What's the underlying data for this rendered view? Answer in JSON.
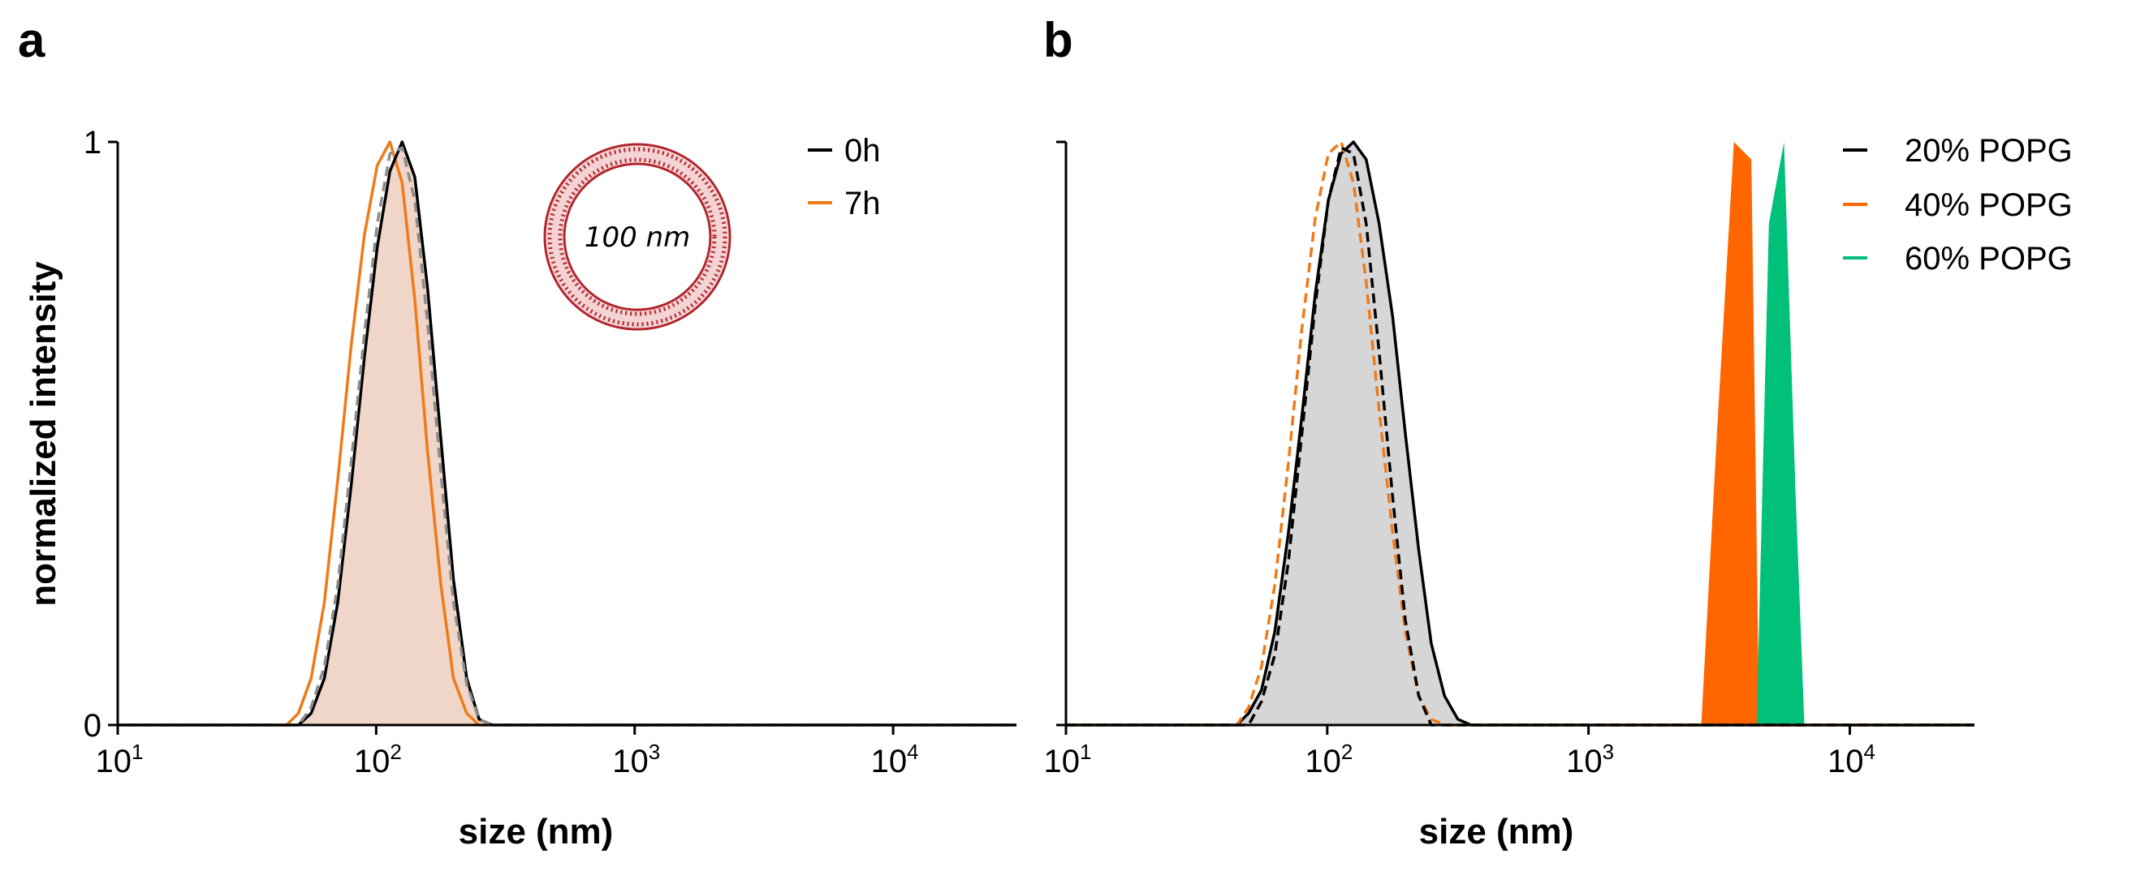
{
  "chart_data": [
    {
      "panel": "a",
      "type": "area",
      "xscale": "log",
      "xlim": [
        10,
        30000
      ],
      "ylim": [
        0,
        1
      ],
      "xlabel": "size (nm)",
      "ylabel": "normalized intensity",
      "ytick_labels": [
        "0",
        "1"
      ],
      "xtick_labels": [
        {
          "base": "10",
          "exp": "1",
          "value": 10
        },
        {
          "base": "10",
          "exp": "2",
          "value": 100
        },
        {
          "base": "10",
          "exp": "3",
          "value": 1000
        },
        {
          "base": "10",
          "exp": "4",
          "value": 10000
        }
      ],
      "legend": [
        "0h",
        "7h"
      ],
      "inset_label": "100 nm",
      "series": [
        {
          "name": "0h",
          "color": "#000000",
          "style": "solid",
          "fill": "#efd6c9",
          "x": [
            10,
            50,
            56,
            63,
            71,
            80,
            90,
            101,
            113,
            126,
            141,
            158,
            178,
            199,
            224,
            250,
            281,
            316,
            30000
          ],
          "y": [
            0,
            0,
            0.02,
            0.08,
            0.21,
            0.41,
            0.63,
            0.82,
            0.95,
            1.0,
            0.94,
            0.75,
            0.49,
            0.25,
            0.08,
            0.01,
            0,
            0,
            0
          ]
        },
        {
          "name": "7h",
          "color": "#f07a18",
          "style": "solid",
          "x": [
            10,
            45,
            50,
            56,
            63,
            71,
            80,
            90,
            101,
            113,
            126,
            141,
            158,
            178,
            199,
            224,
            250,
            281,
            316,
            30000
          ],
          "y": [
            0,
            0,
            0.02,
            0.08,
            0.21,
            0.42,
            0.65,
            0.84,
            0.96,
            1.0,
            0.93,
            0.73,
            0.47,
            0.24,
            0.08,
            0.02,
            0,
            0,
            0,
            0
          ]
        },
        {
          "name": "fit",
          "color": "#8c8c8c",
          "style": "dashed",
          "x": [
            10,
            50,
            56,
            63,
            71,
            80,
            90,
            101,
            113,
            126,
            141,
            158,
            178,
            199,
            224,
            250,
            281,
            30000
          ],
          "y": [
            0,
            0,
            0.03,
            0.1,
            0.24,
            0.45,
            0.67,
            0.86,
            0.98,
            0.99,
            0.9,
            0.69,
            0.43,
            0.21,
            0.07,
            0.01,
            0,
            0
          ]
        }
      ]
    },
    {
      "panel": "b",
      "type": "area",
      "xscale": "log",
      "xlim": [
        10,
        30000
      ],
      "ylim": [
        0,
        1
      ],
      "xlabel": "size (nm)",
      "ylabel": "",
      "ytick_labels": [],
      "xtick_labels": [
        {
          "base": "10",
          "exp": "1",
          "value": 10
        },
        {
          "base": "10",
          "exp": "2",
          "value": 100
        },
        {
          "base": "10",
          "exp": "3",
          "value": 1000
        },
        {
          "base": "10",
          "exp": "4",
          "value": 10000
        }
      ],
      "legend": [
        "20% POPG",
        "40% POPG",
        "60% POPG"
      ],
      "series": [
        {
          "name": "20% POPG",
          "color": "#000000",
          "style": "solid",
          "fill": "#d6d6d6",
          "x": [
            10,
            45,
            50,
            56,
            63,
            71,
            80,
            90,
            101,
            113,
            126,
            141,
            158,
            178,
            199,
            224,
            250,
            281,
            316,
            355,
            30000
          ],
          "y": [
            0,
            0,
            0.02,
            0.06,
            0.16,
            0.33,
            0.53,
            0.74,
            0.9,
            0.98,
            1.0,
            0.97,
            0.86,
            0.7,
            0.5,
            0.3,
            0.14,
            0.05,
            0.01,
            0,
            0
          ]
        },
        {
          "name": "40% POPG",
          "color": "#ff6600",
          "style": "solid",
          "fill": "#ff6600",
          "x": [
            10,
            2700,
            3100,
            3600,
            4200,
            4500,
            30000
          ],
          "y": [
            0,
            0,
            0.5,
            1.0,
            0.97,
            0,
            0
          ]
        },
        {
          "name": "60% POPG",
          "color": "#00c07a",
          "style": "solid",
          "fill": "#00c07a",
          "x": [
            10,
            4400,
            4900,
            5600,
            6200,
            6700,
            30000
          ],
          "y": [
            0,
            0,
            0.86,
            1.0,
            0.4,
            0,
            0
          ]
        },
        {
          "name": "orange dashed",
          "color": "#f07a18",
          "style": "dashed",
          "x": [
            10,
            45,
            50,
            56,
            63,
            71,
            80,
            90,
            101,
            113,
            126,
            141,
            158,
            178,
            199,
            224,
            250,
            281,
            30000
          ],
          "y": [
            0,
            0,
            0.03,
            0.1,
            0.24,
            0.45,
            0.68,
            0.87,
            0.98,
            1.0,
            0.93,
            0.76,
            0.54,
            0.33,
            0.16,
            0.05,
            0.01,
            0,
            0
          ]
        },
        {
          "name": "black dashed",
          "color": "#000000",
          "style": "dashed",
          "x": [
            10,
            50,
            56,
            63,
            71,
            80,
            90,
            101,
            113,
            126,
            141,
            158,
            178,
            199,
            224,
            250,
            30000
          ],
          "y": [
            0,
            0,
            0.04,
            0.12,
            0.28,
            0.5,
            0.72,
            0.9,
            0.99,
            0.98,
            0.86,
            0.64,
            0.39,
            0.18,
            0.05,
            0,
            0
          ]
        }
      ]
    }
  ]
}
